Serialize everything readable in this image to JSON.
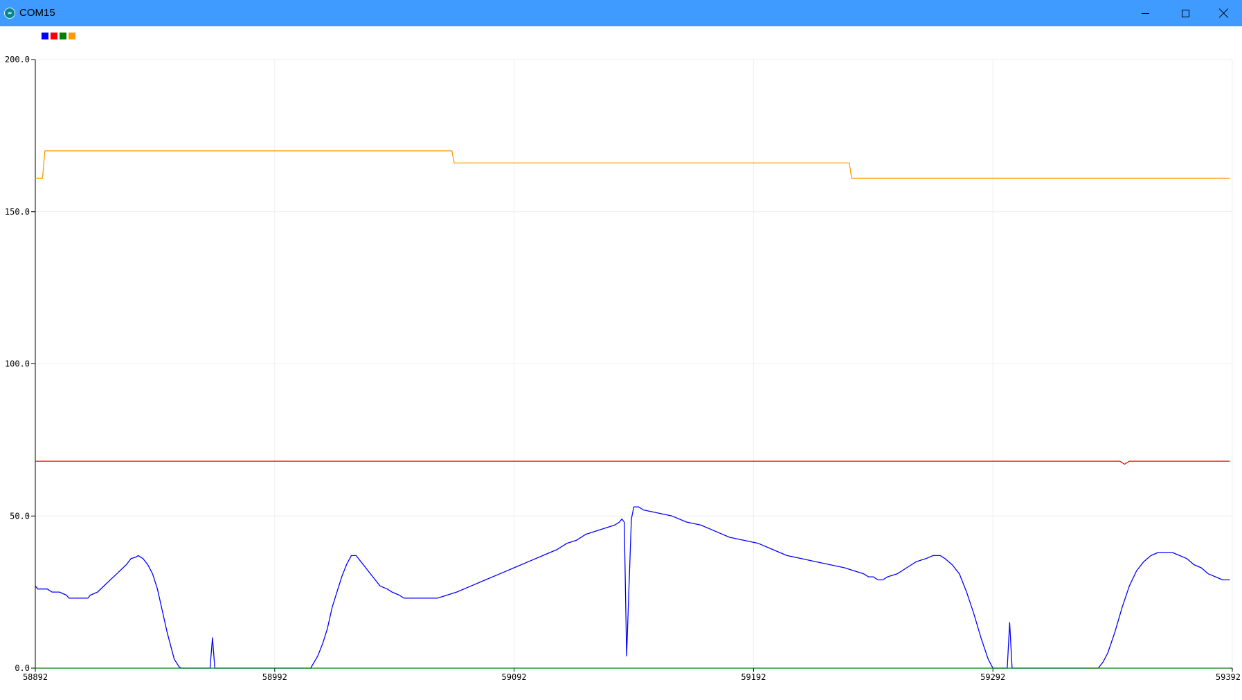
{
  "window": {
    "title": "COM15",
    "app_icon": "arduino-infinity-icon",
    "controls": {
      "minimize_icon": "minimize-icon",
      "maximize_icon": "maximize-icon",
      "close_icon": "close-icon"
    },
    "titlebar_color": "#3f9bff"
  },
  "legend": [
    {
      "color": "#0000ff"
    },
    {
      "color": "#ff0000"
    },
    {
      "color": "#008000"
    },
    {
      "color": "#ff9900"
    }
  ],
  "chart_data": {
    "type": "line",
    "ylim": [
      0,
      200
    ],
    "xlim": [
      58892,
      59392
    ],
    "y_ticks": [
      {
        "value": 0,
        "label": "0.0"
      },
      {
        "value": 50,
        "label": "50.0"
      },
      {
        "value": 100,
        "label": "100.0"
      },
      {
        "value": 150,
        "label": "150.0"
      },
      {
        "value": 200,
        "label": "200.0"
      }
    ],
    "x_ticks": [
      {
        "value": 58892,
        "label": "58892"
      },
      {
        "value": 58992,
        "label": "58992"
      },
      {
        "value": 59092,
        "label": "59092"
      },
      {
        "value": 59192,
        "label": "59192"
      },
      {
        "value": 59292,
        "label": "59292"
      },
      {
        "value": 59392,
        "label": "59392"
      }
    ],
    "grid": true,
    "legend_placement": "top-left",
    "series": [
      {
        "color": "#0000ff",
        "points": [
          [
            58892,
            27
          ],
          [
            58893,
            26
          ],
          [
            58897,
            26
          ],
          [
            58899,
            25
          ],
          [
            58902,
            25
          ],
          [
            58905,
            24
          ],
          [
            58906,
            23
          ],
          [
            58914,
            23
          ],
          [
            58915,
            24
          ],
          [
            58918,
            25
          ],
          [
            58922,
            28
          ],
          [
            58926,
            31
          ],
          [
            58930,
            34
          ],
          [
            58932,
            36
          ],
          [
            58934,
            36.5
          ],
          [
            58935,
            37
          ],
          [
            58937,
            36
          ],
          [
            58939,
            34
          ],
          [
            58941,
            31
          ],
          [
            58943,
            26
          ],
          [
            58945,
            19
          ],
          [
            58947,
            12
          ],
          [
            58949,
            6
          ],
          [
            58950,
            3
          ],
          [
            58952,
            0.5
          ],
          [
            58953,
            0
          ],
          [
            58965,
            0
          ],
          [
            58966,
            10
          ],
          [
            58967,
            0
          ],
          [
            59007,
            0
          ],
          [
            59010,
            4
          ],
          [
            59012,
            8
          ],
          [
            59014,
            13
          ],
          [
            59016,
            20
          ],
          [
            59018,
            25
          ],
          [
            59020,
            30
          ],
          [
            59022,
            34
          ],
          [
            59024,
            37
          ],
          [
            59026,
            37
          ],
          [
            59028,
            35
          ],
          [
            59030,
            33
          ],
          [
            59034,
            29
          ],
          [
            59036,
            27
          ],
          [
            59039,
            26
          ],
          [
            59041,
            25
          ],
          [
            59044,
            24
          ],
          [
            59046,
            23
          ],
          [
            59060,
            23
          ],
          [
            59064,
            24
          ],
          [
            59068,
            25
          ],
          [
            59074,
            27
          ],
          [
            59080,
            29
          ],
          [
            59086,
            31
          ],
          [
            59092,
            33
          ],
          [
            59098,
            35
          ],
          [
            59104,
            37
          ],
          [
            59110,
            39
          ],
          [
            59114,
            41
          ],
          [
            59118,
            42
          ],
          [
            59122,
            44
          ],
          [
            59126,
            45
          ],
          [
            59130,
            46
          ],
          [
            59134,
            47
          ],
          [
            59136,
            48
          ],
          [
            59137,
            49
          ],
          [
            59138,
            48
          ],
          [
            59139,
            4
          ],
          [
            59140,
            27
          ],
          [
            59141,
            49
          ],
          [
            59142,
            53
          ],
          [
            59144,
            53
          ],
          [
            59146,
            52
          ],
          [
            59152,
            51
          ],
          [
            59158,
            50
          ],
          [
            59164,
            48
          ],
          [
            59170,
            47
          ],
          [
            59176,
            45
          ],
          [
            59182,
            43
          ],
          [
            59188,
            42
          ],
          [
            59194,
            41
          ],
          [
            59200,
            39
          ],
          [
            59206,
            37
          ],
          [
            59212,
            36
          ],
          [
            59218,
            35
          ],
          [
            59224,
            34
          ],
          [
            59230,
            33
          ],
          [
            59234,
            32
          ],
          [
            59238,
            31
          ],
          [
            59240,
            30
          ],
          [
            59242,
            30
          ],
          [
            59244,
            29
          ],
          [
            59246,
            29
          ],
          [
            59248,
            30
          ],
          [
            59252,
            31
          ],
          [
            59256,
            33
          ],
          [
            59260,
            35
          ],
          [
            59264,
            36
          ],
          [
            59267,
            37
          ],
          [
            59270,
            37
          ],
          [
            59272,
            36
          ],
          [
            59275,
            34
          ],
          [
            59278,
            31
          ],
          [
            59281,
            25
          ],
          [
            59284,
            18
          ],
          [
            59287,
            10
          ],
          [
            59290,
            3
          ],
          [
            59292,
            0
          ],
          [
            59298,
            0
          ],
          [
            59299,
            15
          ],
          [
            59300,
            0
          ],
          [
            59336,
            0
          ],
          [
            59338,
            2
          ],
          [
            59340,
            5
          ],
          [
            59343,
            12
          ],
          [
            59346,
            20
          ],
          [
            59349,
            27
          ],
          [
            59352,
            32
          ],
          [
            59355,
            35
          ],
          [
            59358,
            37
          ],
          [
            59361,
            38
          ],
          [
            59367,
            38
          ],
          [
            59370,
            37
          ],
          [
            59373,
            36
          ],
          [
            59376,
            34
          ],
          [
            59379,
            33
          ],
          [
            59382,
            31
          ],
          [
            59385,
            30
          ],
          [
            59388,
            29
          ],
          [
            59391,
            29
          ]
        ]
      },
      {
        "color": "#ff0000",
        "points": [
          [
            58892,
            68
          ],
          [
            59345,
            68
          ],
          [
            59347,
            67
          ],
          [
            59349,
            68
          ],
          [
            59391,
            68
          ]
        ]
      },
      {
        "color": "#008000",
        "points": [
          [
            58892,
            0
          ],
          [
            59391,
            0
          ]
        ]
      },
      {
        "color": "#ff9900",
        "points": [
          [
            58892,
            161
          ],
          [
            58895,
            161
          ],
          [
            58896,
            170
          ],
          [
            59066,
            170
          ],
          [
            59067,
            166
          ],
          [
            59232,
            166
          ],
          [
            59233,
            161
          ],
          [
            59391,
            161
          ]
        ]
      }
    ]
  }
}
